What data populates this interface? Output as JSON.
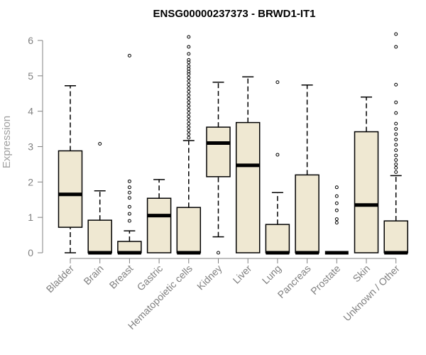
{
  "chart_data": {
    "type": "boxplot",
    "title": "ENSG00000237373 - BRWD1-IT1",
    "xlabel": "",
    "ylabel": "Expression",
    "ylim": [
      0,
      6.2
    ],
    "yticks": [
      0,
      1,
      2,
      3,
      4,
      5,
      6
    ],
    "box_fill": "#efe8d2",
    "median_color": "#000000",
    "axis_color": "#808080",
    "categories": [
      "Bladder",
      "Brain",
      "Breast",
      "Gastric",
      "Hematopoietic cells",
      "Kidney",
      "Liver",
      "Lung",
      "Pancreas",
      "Prostate",
      "Skin",
      "Unknown / Other"
    ],
    "series": [
      {
        "name": "Bladder",
        "whisker_low": 0,
        "q1": 0.72,
        "median": 1.65,
        "q3": 2.88,
        "whisker_high": 4.72,
        "outliers": []
      },
      {
        "name": "Brain",
        "whisker_low": 0,
        "q1": 0,
        "median": 0,
        "q3": 0.92,
        "whisker_high": 1.75,
        "outliers": [
          3.08
        ]
      },
      {
        "name": "Breast",
        "whisker_low": 0,
        "q1": 0,
        "median": 0,
        "q3": 0.32,
        "whisker_high": 0.62,
        "outliers": [
          0.9,
          1.1,
          1.3,
          1.55,
          1.7,
          1.85,
          2.02,
          5.57
        ]
      },
      {
        "name": "Gastric",
        "whisker_low": 0,
        "q1": 0,
        "median": 1.05,
        "q3": 1.54,
        "whisker_high": 2.07,
        "outliers": []
      },
      {
        "name": "Hematopoietic cells",
        "whisker_low": 0,
        "q1": 0,
        "median": 0,
        "q3": 1.28,
        "whisker_high": 3.17,
        "outliers": [
          3.25,
          3.35,
          3.45,
          3.55,
          3.65,
          3.75,
          3.85,
          3.95,
          4.05,
          4.15,
          4.25,
          4.35,
          4.45,
          4.55,
          4.65,
          4.75,
          4.85,
          4.95,
          5.05,
          5.12,
          5.2,
          5.28,
          5.38,
          5.45,
          5.62,
          5.82,
          6.1
        ]
      },
      {
        "name": "Kidney",
        "whisker_low": 0.45,
        "q1": 2.15,
        "median": 3.1,
        "q3": 3.55,
        "whisker_high": 4.82,
        "outliers": [
          0
        ]
      },
      {
        "name": "Liver",
        "whisker_low": 0,
        "q1": 0,
        "median": 2.47,
        "q3": 3.68,
        "whisker_high": 4.97,
        "outliers": []
      },
      {
        "name": "Lung",
        "whisker_low": 0,
        "q1": 0,
        "median": 0,
        "q3": 0.8,
        "whisker_high": 1.7,
        "outliers": [
          2.77,
          4.82
        ]
      },
      {
        "name": "Pancreas",
        "whisker_low": 0,
        "q1": 0,
        "median": 0,
        "q3": 2.2,
        "whisker_high": 4.74,
        "outliers": []
      },
      {
        "name": "Prostate",
        "whisker_low": 0,
        "q1": 0,
        "median": 0,
        "q3": 0,
        "whisker_high": 0,
        "outliers": [
          0.85,
          0.95,
          1.2,
          1.4,
          1.6,
          1.85
        ]
      },
      {
        "name": "Skin",
        "whisker_low": 0,
        "q1": 0,
        "median": 1.35,
        "q3": 3.42,
        "whisker_high": 4.4,
        "outliers": []
      },
      {
        "name": "Unknown / Other",
        "whisker_low": 0,
        "q1": 0,
        "median": 0,
        "q3": 0.9,
        "whisker_high": 2.18,
        "outliers": [
          2.28,
          2.4,
          2.5,
          2.62,
          2.75,
          2.9,
          3.05,
          3.2,
          3.35,
          3.5,
          3.65,
          3.95,
          4.25,
          4.75,
          5.82,
          6.18
        ]
      }
    ]
  }
}
